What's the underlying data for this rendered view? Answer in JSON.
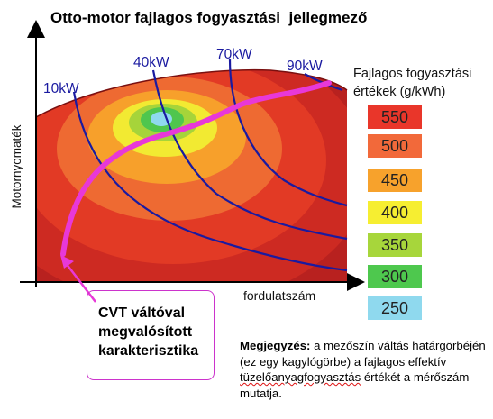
{
  "title": "Otto-motor fajlagos fogyasztási  jellegmező",
  "axes": {
    "y_label": "Motornyomaték",
    "x_label": "fordulatszám"
  },
  "power_curves": [
    {
      "label": "10kW",
      "color": "#1a1aa0"
    },
    {
      "label": "40kW",
      "color": "#1a1aa0"
    },
    {
      "label": "70kW",
      "color": "#1a1aa0"
    },
    {
      "label": "90kW",
      "color": "#1a1aa0"
    }
  ],
  "legend": {
    "title": "Fajlagos fogyasztási értékek (g/kWh)",
    "entries": [
      {
        "value": "550",
        "color": "#e9362a"
      },
      {
        "value": "500",
        "color": "#f2693a"
      },
      {
        "value": "450",
        "color": "#f7a22c"
      },
      {
        "value": "400",
        "color": "#f6ee31"
      },
      {
        "value": "350",
        "color": "#a7d63b"
      },
      {
        "value": "300",
        "color": "#4ec84e"
      },
      {
        "value": "250",
        "color": "#8fd9ee"
      }
    ]
  },
  "cvt_annotation": {
    "line1": "CVT váltóval",
    "line2": "megvalósított",
    "line3": "karakterisztika",
    "color": "#e838d8"
  },
  "note": {
    "lead": "Megjegyzés:",
    "t1": " a mezőszín váltás határgörbéjén (ez egy kagylógörbe) a fajlagos effektív ",
    "t2": "tüzelőanyagfogyasztás",
    "t3": " értékét a mérőszám mutatja."
  }
}
